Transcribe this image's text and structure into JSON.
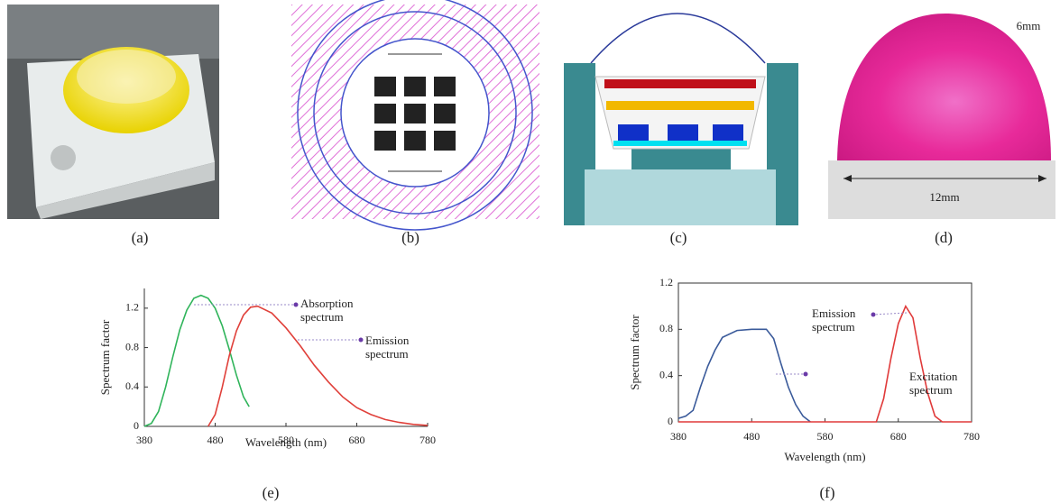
{
  "panel_labels": [
    "(a)",
    "(b)",
    "(c)",
    "(d)",
    "(e)",
    "(f)"
  ],
  "lens_dimensions": {
    "height": "6mm",
    "width": "12mm"
  },
  "chart_data": [
    {
      "type": "line",
      "xlabel": "Wavelength (nm)",
      "ylabel": "Spectrum factor",
      "xlim": [
        380,
        780
      ],
      "xticks": [
        380,
        480,
        580,
        680,
        780
      ],
      "ylim": [
        0,
        1.4
      ],
      "yticks": [
        0,
        0.4,
        0.8,
        1.2
      ],
      "frame": false,
      "series": [
        {
          "name": "Absorption spectrum",
          "color": "#2fb45a",
          "x": [
            380,
            390,
            400,
            410,
            420,
            430,
            440,
            450,
            460,
            470,
            480,
            490,
            500,
            510,
            520,
            528
          ],
          "values": [
            0,
            0.03,
            0.15,
            0.4,
            0.7,
            0.98,
            1.18,
            1.3,
            1.33,
            1.3,
            1.2,
            1.02,
            0.78,
            0.52,
            0.3,
            0.2
          ]
        },
        {
          "name": "Emission spectrum",
          "color": "#e0403a",
          "x": [
            470,
            480,
            490,
            500,
            510,
            520,
            530,
            540,
            560,
            580,
            600,
            620,
            640,
            660,
            680,
            700,
            720,
            740,
            760,
            780
          ],
          "values": [
            0,
            0.12,
            0.4,
            0.72,
            0.97,
            1.13,
            1.21,
            1.22,
            1.15,
            1.0,
            0.82,
            0.62,
            0.45,
            0.3,
            0.19,
            0.12,
            0.07,
            0.04,
            0.02,
            0.01
          ]
        }
      ]
    },
    {
      "type": "line",
      "xlabel": "Wavelength (nm)",
      "ylabel": "Spectrum factor",
      "xlim": [
        380,
        780
      ],
      "xticks": [
        380,
        480,
        580,
        680,
        780
      ],
      "ylim": [
        0,
        1.2
      ],
      "yticks": [
        0,
        0.4,
        0.8,
        1.2
      ],
      "frame": true,
      "series": [
        {
          "name": "Excitation spectrum",
          "color": "#3a5a9a",
          "x": [
            380,
            390,
            400,
            410,
            420,
            430,
            440,
            460,
            480,
            500,
            510,
            520,
            530,
            540,
            550,
            560
          ],
          "values": [
            0.03,
            0.05,
            0.1,
            0.3,
            0.48,
            0.62,
            0.73,
            0.79,
            0.8,
            0.8,
            0.72,
            0.5,
            0.3,
            0.15,
            0.05,
            0
          ]
        },
        {
          "name": "Emission spectrum",
          "color": "#e03a3a",
          "x": [
            380,
            650,
            660,
            670,
            680,
            690,
            700,
            710,
            720,
            730,
            740,
            780
          ],
          "values": [
            0,
            0,
            0.2,
            0.55,
            0.85,
            1.0,
            0.9,
            0.55,
            0.25,
            0.05,
            0,
            0
          ]
        }
      ]
    }
  ]
}
